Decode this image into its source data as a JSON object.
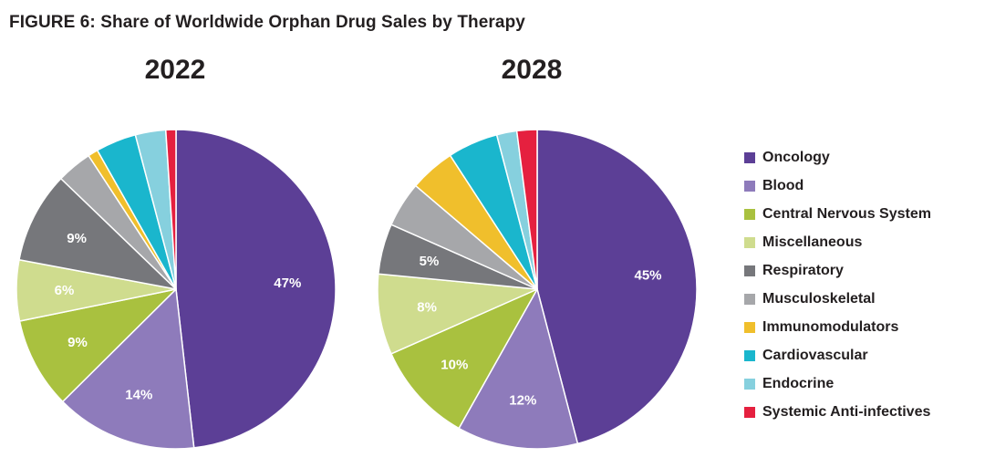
{
  "title": "FIGURE 6: Share of Worldwide Orphan Drug Sales by Therapy",
  "legend": [
    {
      "label": "Oncology",
      "color": "#5c3f96"
    },
    {
      "label": "Blood",
      "color": "#8e7bbb"
    },
    {
      "label": "Central Nervous System",
      "color": "#a9c13f"
    },
    {
      "label": "Miscellaneous",
      "color": "#cfdc8e"
    },
    {
      "label": "Respiratory",
      "color": "#76777b"
    },
    {
      "label": "Musculoskeletal",
      "color": "#a6a7aa"
    },
    {
      "label": "Immunomodulators",
      "color": "#f0bf2c"
    },
    {
      "label": "Cardiovascular",
      "color": "#1ab6cd"
    },
    {
      "label": "Endocrine",
      "color": "#86d0de"
    },
    {
      "label": "Systemic Anti-infectives",
      "color": "#e5203f"
    }
  ],
  "chart_data": [
    {
      "type": "pie",
      "title": "2022",
      "categories": [
        "Oncology",
        "Blood",
        "Central Nervous System",
        "Miscellaneous",
        "Respiratory",
        "Musculoskeletal",
        "Immunomodulators",
        "Cardiovascular",
        "Endocrine",
        "Systemic Anti-infectives"
      ],
      "values": [
        47,
        14,
        9,
        6,
        9,
        3.5,
        1,
        4,
        3,
        1
      ],
      "data_labels": [
        "47%",
        "14%",
        "9%",
        "6%",
        "9%",
        "",
        "",
        "",
        "",
        ""
      ]
    },
    {
      "type": "pie",
      "title": "2028",
      "categories": [
        "Oncology",
        "Blood",
        "Central Nervous System",
        "Miscellaneous",
        "Respiratory",
        "Musculoskeletal",
        "Immunomodulators",
        "Cardiovascular",
        "Endocrine",
        "Systemic Anti-infectives"
      ],
      "values": [
        45,
        12,
        10,
        8,
        5,
        4.5,
        4.5,
        5,
        2,
        2
      ],
      "data_labels": [
        "45%",
        "12%",
        "10%",
        "8%",
        "5%",
        "",
        "",
        "",
        "",
        ""
      ]
    }
  ]
}
